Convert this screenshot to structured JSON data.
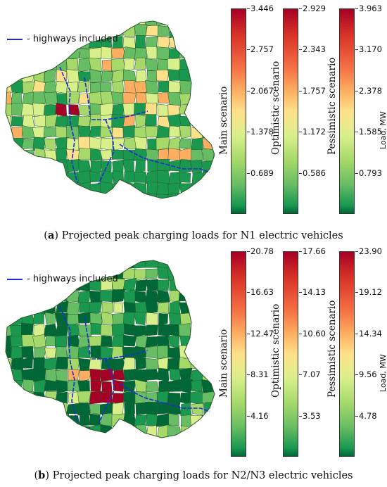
{
  "chart_data": [
    {
      "type": "heatmap",
      "panel_label": "a",
      "caption": "Projected peak charging loads for N1 electric vehicles",
      "legend_label": "- highways included",
      "colorbar_unit": "Load, MW",
      "colorbars": [
        {
          "name": "Main scenario",
          "max": 3.446,
          "ticks": [
            "3.446",
            "2.757",
            "2.067",
            "1.378",
            "0.689"
          ]
        },
        {
          "name": "Optimistic scenario",
          "max": 2.929,
          "ticks": [
            "2.929",
            "2.343",
            "1.757",
            "1.172",
            "0.586"
          ]
        },
        {
          "name": "Pessimistic scenario",
          "max": 3.963,
          "ticks": [
            "3.963",
            "3.170",
            "2.378",
            "1.585",
            "0.793"
          ]
        }
      ]
    },
    {
      "type": "heatmap",
      "panel_label": "b",
      "caption": "Projected peak charging loads for N2/N3 electric vehicles",
      "legend_label": "- highways included",
      "colorbar_unit": "Load, MW",
      "colorbars": [
        {
          "name": "Main scenario",
          "max": 20.78,
          "ticks": [
            "20.78",
            "16.63",
            "12.47",
            "8.31",
            "4.16"
          ]
        },
        {
          "name": "Optimistic scenario",
          "max": 17.66,
          "ticks": [
            "17.66",
            "14.13",
            "10.60",
            "7.07",
            "3.53"
          ]
        },
        {
          "name": "Pessimistic scenario",
          "max": 23.9,
          "ticks": [
            "23.90",
            "19.12",
            "14.34",
            "9.56",
            "4.78"
          ]
        }
      ]
    }
  ],
  "colors": {
    "highway": "#1f2bd6",
    "palette": [
      "#006837",
      "#1a9850",
      "#66bd63",
      "#a6d96a",
      "#d9ef8b",
      "#fee08b",
      "#fdae61",
      "#f46d43",
      "#d73027",
      "#a50026"
    ]
  }
}
